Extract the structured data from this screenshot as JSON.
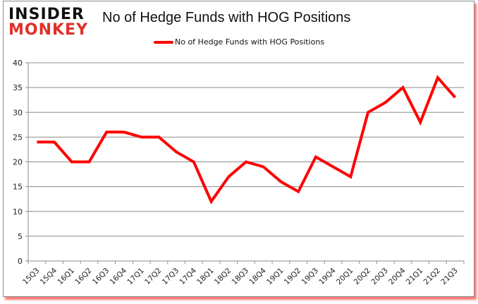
{
  "logo": {
    "line1": "INSIDER",
    "line2": "MONKEY"
  },
  "colors": {
    "series": "#ff0000",
    "grid": "#8c8c8c",
    "logo_red": "#e0302a"
  },
  "chart_data": {
    "type": "line",
    "title": "No of Hedge Funds with HOG Positions",
    "xlabel": "",
    "ylabel": "",
    "ylim": [
      0,
      40
    ],
    "yticks": [
      0,
      5,
      10,
      15,
      20,
      25,
      30,
      35,
      40
    ],
    "grid": true,
    "legend_position": "top",
    "categories": [
      "15Q3",
      "15Q4",
      "16Q1",
      "16Q2",
      "16Q3",
      "16Q4",
      "17Q1",
      "17Q2",
      "17Q3",
      "17Q4",
      "18Q1",
      "18Q2",
      "18Q3",
      "18Q4",
      "19Q1",
      "19Q2",
      "19Q3",
      "19Q4",
      "20Q1",
      "20Q2",
      "20Q3",
      "20Q4",
      "21Q1",
      "21Q2",
      "21Q3"
    ],
    "series": [
      {
        "name": "No of Hedge Funds with HOG Positions",
        "values": [
          24,
          24,
          20,
          20,
          26,
          26,
          25,
          25,
          22,
          20,
          12,
          17,
          20,
          19,
          16,
          14,
          21,
          19,
          17,
          30,
          32,
          35,
          28,
          37,
          33
        ]
      }
    ]
  }
}
